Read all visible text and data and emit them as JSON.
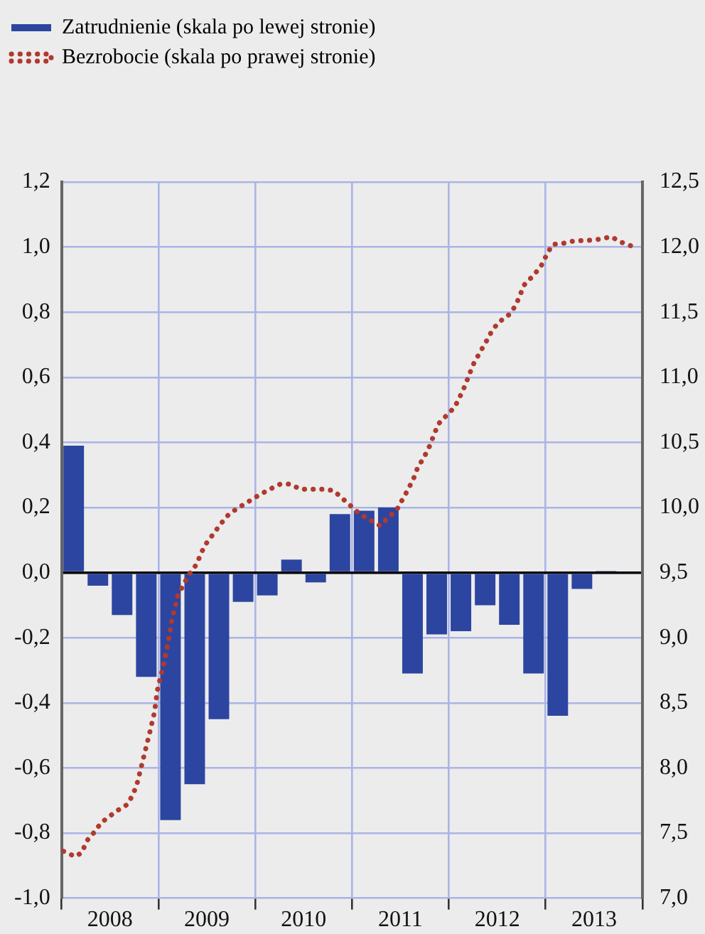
{
  "chart_data": {
    "type": "bar",
    "legend": "top left",
    "grid": true,
    "marker": "none",
    "xlim": [
      2008,
      2014
    ],
    "xticks": [
      {
        "value": 2008,
        "label": null
      },
      {
        "value": 2008.5,
        "label": "2008"
      },
      {
        "value": 2009,
        "label": null
      },
      {
        "value": 2009.5,
        "label": "2009"
      },
      {
        "value": 2010,
        "label": null
      },
      {
        "value": 2010.5,
        "label": "2010"
      },
      {
        "value": 2011,
        "label": null
      },
      {
        "value": 2011.5,
        "label": "2011"
      },
      {
        "value": 2012,
        "label": null
      },
      {
        "value": 2012.5,
        "label": "2012"
      },
      {
        "value": 2013,
        "label": null
      },
      {
        "value": 2013.5,
        "label": "2013"
      },
      {
        "value": 2014,
        "label": null
      }
    ],
    "ylim": [
      -1,
      1.2
    ],
    "yticks": [
      {
        "value": -1,
        "label": "-1,0"
      },
      {
        "value": -0.8,
        "label": "-0,8"
      },
      {
        "value": -0.6,
        "label": "-0,6"
      },
      {
        "value": -0.4,
        "label": "-0,4"
      },
      {
        "value": -0.2,
        "label": "-0,2"
      },
      {
        "value": 0,
        "label": "0,0"
      },
      {
        "value": 0.2,
        "label": "0,2"
      },
      {
        "value": 0.4,
        "label": "0,4"
      },
      {
        "value": 0.6,
        "label": "0,6"
      },
      {
        "value": 0.8,
        "label": "0,8"
      },
      {
        "value": 1,
        "label": "1,0"
      },
      {
        "value": 1.2,
        "label": "1,2"
      }
    ],
    "y2lim": [
      7,
      12.5
    ],
    "y2ticks": [
      {
        "value": 7,
        "label": "7,0"
      },
      {
        "value": 7.5,
        "label": "7,5"
      },
      {
        "value": 8,
        "label": "8,0"
      },
      {
        "value": 8.5,
        "label": "8,5"
      },
      {
        "value": 9,
        "label": "9,0"
      },
      {
        "value": 9.5,
        "label": "9,5"
      },
      {
        "value": 10,
        "label": "10,0"
      },
      {
        "value": 10.5,
        "label": "10,5"
      },
      {
        "value": 11,
        "label": "11,0"
      },
      {
        "value": 11.5,
        "label": "11,5"
      },
      {
        "value": 12,
        "label": "12,0"
      },
      {
        "value": 12.5,
        "label": "12,5"
      }
    ],
    "series": [
      {
        "name": "Zatrudnienie (skala po lewej stronie)",
        "color": "#2c45a0",
        "x": [
          2008.125,
          2008.375,
          2008.625,
          2008.875,
          2009.125,
          2009.375,
          2009.625,
          2009.875,
          2010.125,
          2010.375,
          2010.625,
          2010.875,
          2011.125,
          2011.375,
          2011.625,
          2011.875,
          2012.125,
          2012.375,
          2012.625,
          2012.875,
          2013.125,
          2013.375,
          2013.625
        ],
        "values": [
          0.39,
          -0.04,
          -0.13,
          -0.32,
          -0.76,
          -0.65,
          -0.45,
          -0.09,
          -0.07,
          0.04,
          -0.03,
          0.18,
          0.19,
          0.2,
          -0.31,
          -0.19,
          -0.18,
          -0.1,
          -0.16,
          -0.31,
          -0.44,
          -0.05,
          0.005
        ]
      },
      {
        "name": "Bezrobocie (skala po prawej stronie)",
        "type": "line",
        "axis": "y2",
        "line_style": "dotted",
        "color": "#b03a2e",
        "x": [
          2008.02,
          2008.14,
          2008.21,
          2008.26,
          2008.33,
          2008.41,
          2008.48,
          2008.57,
          2008.68,
          2008.74,
          2008.78,
          2008.84,
          2008.9,
          2008.96,
          2008.99,
          2009.05,
          2009.1,
          2009.14,
          2009.2,
          2009.26,
          2009.32,
          2009.4,
          2009.44,
          2009.5,
          2009.58,
          2009.65,
          2009.73,
          2009.83,
          2009.94,
          2010.05,
          2010.15,
          2010.26,
          2010.36,
          2010.47,
          2010.59,
          2010.71,
          2010.81,
          2010.9,
          2010.99,
          2011.08,
          2011.2,
          2011.29,
          2011.37,
          2011.46,
          2011.52,
          2011.58,
          2011.64,
          2011.68,
          2011.74,
          2011.8,
          2011.89,
          2011.98,
          2012.06,
          2012.12,
          2012.17,
          2012.21,
          2012.26,
          2012.32,
          2012.39,
          2012.44,
          2012.51,
          2012.62,
          2012.69,
          2012.74,
          2012.78,
          2012.87,
          2012.95,
          2013.01,
          2013.07,
          2013.19,
          2013.31,
          2013.43,
          2013.55,
          2013.68,
          2013.77,
          2013.88
        ],
        "values": [
          7.36,
          7.32,
          7.35,
          7.44,
          7.5,
          7.58,
          7.62,
          7.67,
          7.72,
          7.8,
          7.88,
          8.06,
          8.24,
          8.43,
          8.6,
          8.78,
          8.96,
          9.14,
          9.32,
          9.41,
          9.49,
          9.57,
          9.65,
          9.73,
          9.81,
          9.88,
          9.95,
          10.0,
          10.05,
          10.1,
          10.14,
          10.18,
          10.18,
          10.14,
          10.14,
          10.14,
          10.13,
          10.07,
          10.01,
          9.95,
          9.9,
          9.86,
          9.92,
          9.98,
          10.06,
          10.14,
          10.23,
          10.31,
          10.38,
          10.47,
          10.64,
          10.71,
          10.77,
          10.86,
          10.94,
          11.02,
          11.11,
          11.19,
          11.28,
          11.35,
          11.42,
          11.48,
          11.55,
          11.64,
          11.71,
          11.78,
          11.85,
          11.94,
          12.02,
          12.03,
          12.05,
          12.05,
          12.06,
          12.08,
          12.04,
          12.01
        ]
      }
    ]
  }
}
